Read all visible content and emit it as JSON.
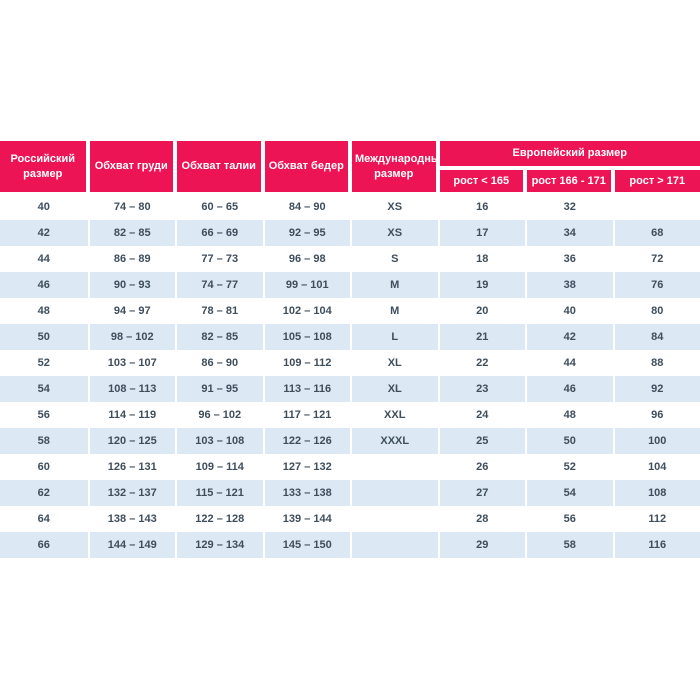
{
  "page": {
    "background": "#ffffff"
  },
  "colors": {
    "header_bg": "#ed1456",
    "header_text": "#ffffff",
    "row_bg": "#ffffff",
    "row_alt_bg": "#dce8f4",
    "body_text": "#3f4e5c"
  },
  "chart_data": {
    "type": "table",
    "title": "",
    "header": {
      "top": [
        "Российский размер",
        "Обхват груди",
        "Обхват талии",
        "Обхват бедер",
        "Международный размер"
      ],
      "group": "Европейский размер",
      "subcolumns": [
        "рост < 165",
        "рост 166 - 171",
        "рост > 171"
      ]
    },
    "rows": [
      [
        "40",
        "74 – 80",
        "60 – 65",
        "84 – 90",
        "XS",
        "16",
        "32",
        ""
      ],
      [
        "42",
        "82 – 85",
        "66 – 69",
        "92 – 95",
        "XS",
        "17",
        "34",
        "68"
      ],
      [
        "44",
        "86 – 89",
        "77 – 73",
        "96 – 98",
        "S",
        "18",
        "36",
        "72"
      ],
      [
        "46",
        "90 – 93",
        "74 – 77",
        "99 – 101",
        "M",
        "19",
        "38",
        "76"
      ],
      [
        "48",
        "94 – 97",
        "78 – 81",
        "102 – 104",
        "M",
        "20",
        "40",
        "80"
      ],
      [
        "50",
        "98 – 102",
        "82 – 85",
        "105 – 108",
        "L",
        "21",
        "42",
        "84"
      ],
      [
        "52",
        "103 – 107",
        "86 – 90",
        "109 – 112",
        "XL",
        "22",
        "44",
        "88"
      ],
      [
        "54",
        "108 – 113",
        "91 – 95",
        "113 – 116",
        "XL",
        "23",
        "46",
        "92"
      ],
      [
        "56",
        "114 – 119",
        "96 – 102",
        "117 – 121",
        "XXL",
        "24",
        "48",
        "96"
      ],
      [
        "58",
        "120 – 125",
        "103 – 108",
        "122 – 126",
        "XXXL",
        "25",
        "50",
        "100"
      ],
      [
        "60",
        "126 – 131",
        "109 – 114",
        "127 – 132",
        "",
        "26",
        "52",
        "104"
      ],
      [
        "62",
        "132 – 137",
        "115 – 121",
        "133 – 138",
        "",
        "27",
        "54",
        "108"
      ],
      [
        "64",
        "138 – 143",
        "122 – 128",
        "139 – 144",
        "",
        "28",
        "56",
        "112"
      ],
      [
        "66",
        "144 – 149",
        "129 – 134",
        "145 – 150",
        "",
        "29",
        "58",
        "116"
      ]
    ]
  }
}
